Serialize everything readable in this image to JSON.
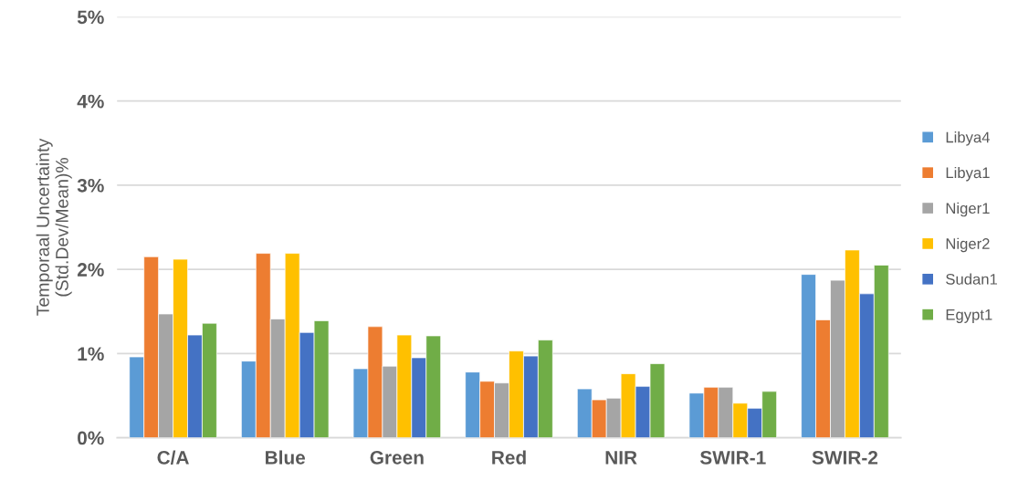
{
  "chart_data": {
    "type": "bar",
    "ylabel": "Temporaal Uncertainty\n(Std.Dev/Mean)%",
    "categories": [
      "C/A",
      "Blue",
      "Green",
      "Red",
      "NIR",
      "SWIR-1",
      "SWIR-2"
    ],
    "series": [
      {
        "name": "Libya4",
        "color": "#5b9bd5",
        "values": [
          0.96,
          0.91,
          0.82,
          0.78,
          0.58,
          0.53,
          1.94
        ]
      },
      {
        "name": "Libya1",
        "color": "#ed7d31",
        "values": [
          2.15,
          2.19,
          1.32,
          0.67,
          0.45,
          0.6,
          1.4
        ]
      },
      {
        "name": "Niger1",
        "color": "#a5a5a5",
        "values": [
          1.47,
          1.41,
          0.85,
          0.65,
          0.47,
          0.6,
          1.87
        ]
      },
      {
        "name": "Niger2",
        "color": "#ffc000",
        "values": [
          2.12,
          2.19,
          1.22,
          1.03,
          0.76,
          0.41,
          2.23
        ]
      },
      {
        "name": "Sudan1",
        "color": "#4472c4",
        "values": [
          1.22,
          1.25,
          0.95,
          0.97,
          0.61,
          0.35,
          1.71
        ]
      },
      {
        "name": "Egypt1",
        "color": "#70ad47",
        "values": [
          1.36,
          1.39,
          1.21,
          1.16,
          0.88,
          0.55,
          2.05
        ]
      }
    ],
    "ylim": [
      0,
      5
    ],
    "yticks": [
      {
        "value": 0,
        "label": "0%"
      },
      {
        "value": 1,
        "label": "1%"
      },
      {
        "value": 2,
        "label": "2%"
      },
      {
        "value": 3,
        "label": "3%"
      },
      {
        "value": 4,
        "label": "4%"
      },
      {
        "value": 5,
        "label": "5%"
      }
    ],
    "grid": "y",
    "legend": "right"
  }
}
